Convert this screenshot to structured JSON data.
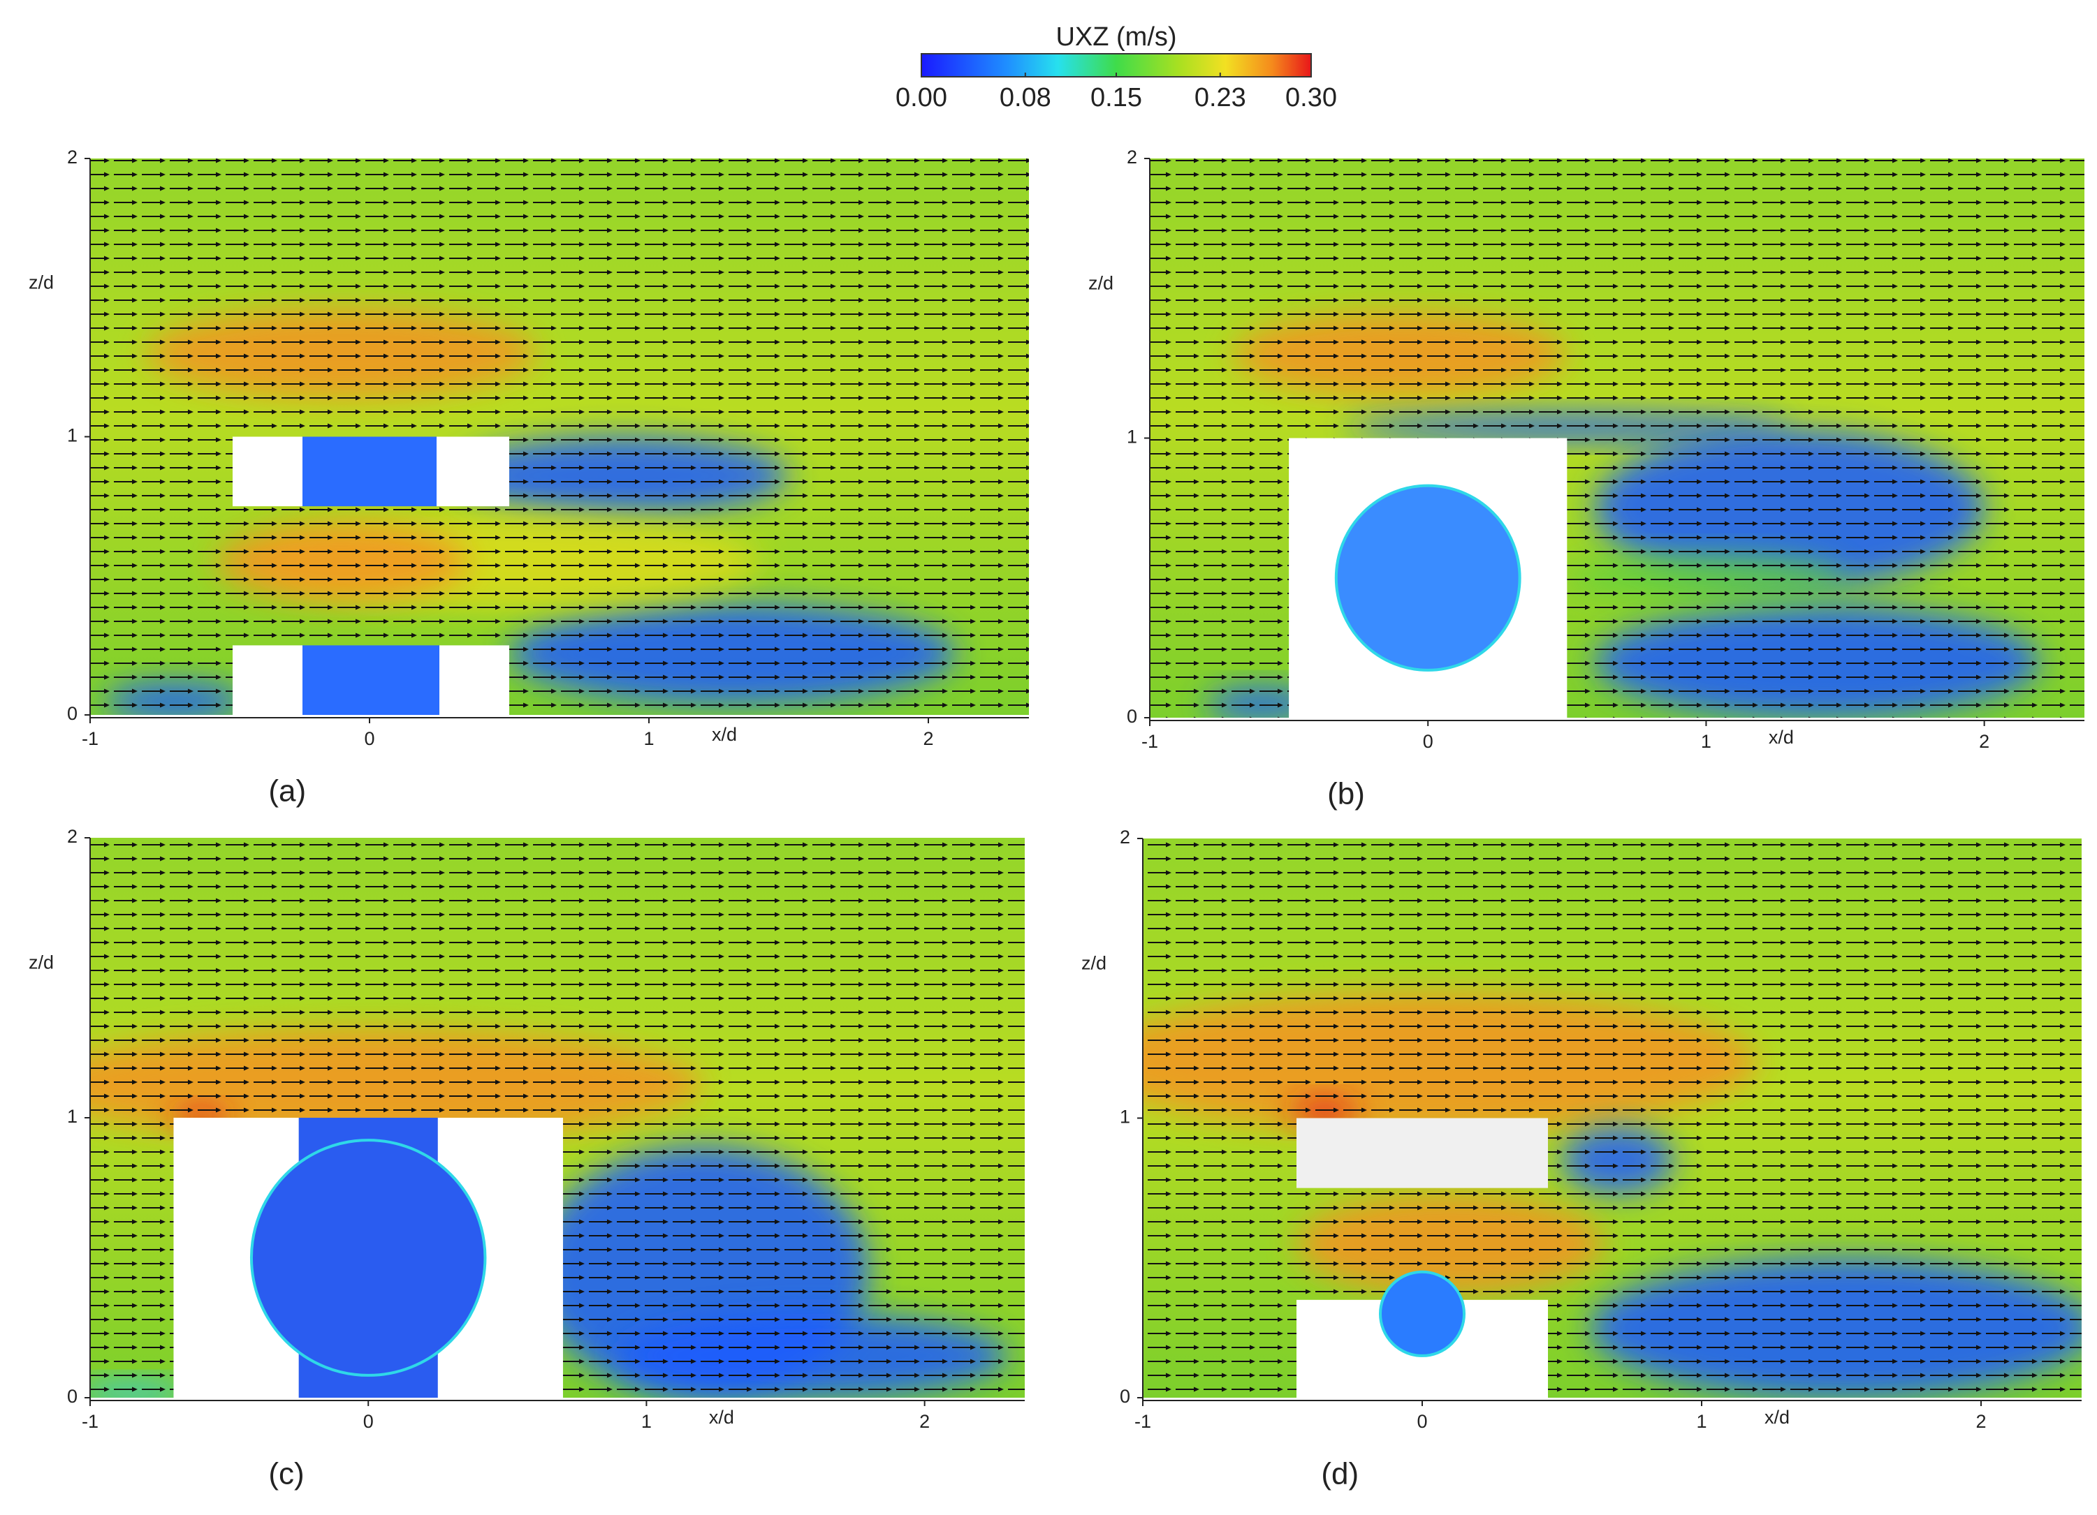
{
  "colorbar": {
    "title": "UXZ (m/s)",
    "lim": [
      0,
      0.3
    ],
    "ticks": [
      {
        "value": 0,
        "label": "0.00"
      },
      0.08,
      0.15,
      0.23,
      {
        "value": 0.3,
        "label": "0.30"
      }
    ]
  },
  "chart_data": [
    {
      "type": "contour",
      "caption": "(a)",
      "xlabel": "x/d",
      "ylabel": "z/d",
      "xlim": [
        -1,
        2.36
      ],
      "ylim": [
        0,
        2
      ],
      "xticks": [
        -1,
        0,
        1,
        2
      ],
      "yticks": [
        0,
        1,
        2
      ]
    },
    {
      "type": "contour",
      "caption": "(b)",
      "xlabel": "x/d",
      "ylabel": "z/d",
      "xlim": [
        -1,
        2.36
      ],
      "ylim": [
        0,
        2
      ],
      "xticks": [
        -1,
        0,
        1,
        2
      ],
      "yticks": [
        0,
        1,
        2
      ]
    },
    {
      "type": "contour",
      "caption": "(c)",
      "xlabel": "x/d",
      "ylabel": "z/d",
      "xlim": [
        -1,
        2.36
      ],
      "ylim": [
        0,
        2
      ],
      "xticks": [
        -1,
        0,
        1,
        2
      ],
      "yticks": [
        0,
        1,
        2
      ]
    },
    {
      "type": "contour",
      "caption": "(d)",
      "xlabel": "x/d",
      "ylabel": "z/d",
      "xlim": [
        -1,
        2.36
      ],
      "ylim": [
        0,
        2
      ],
      "xticks": [
        -1,
        0,
        1,
        2
      ],
      "yticks": [
        0,
        1,
        2
      ]
    }
  ]
}
